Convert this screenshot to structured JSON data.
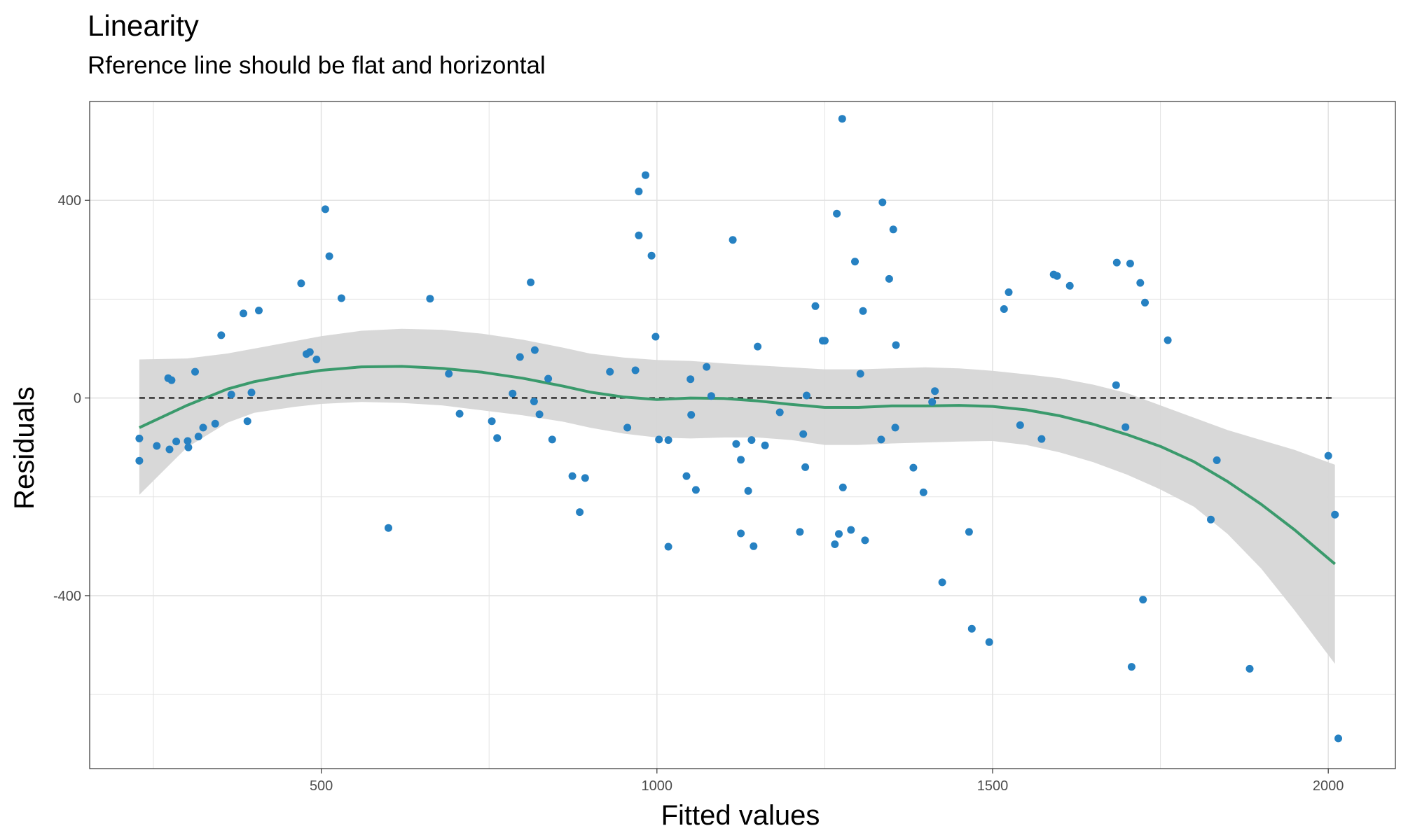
{
  "chart_data": {
    "type": "scatter",
    "title": "Linearity",
    "subtitle": "Rference line should be flat and horizontal",
    "xlabel": "Fitted values",
    "ylabel": "Residuals",
    "xlim": [
      155,
      2100
    ],
    "ylim": [
      -750,
      600
    ],
    "x_ticks": [
      500,
      1000,
      1500,
      2000
    ],
    "y_ticks": [
      -400,
      0,
      400
    ],
    "grid": true,
    "reference_line": {
      "y": 0,
      "style": "dashed",
      "x_range": [
        229,
        2010
      ]
    },
    "colors": {
      "points": "#2681c2",
      "smooth": "#3a9a6c",
      "band": "#d6d6d6",
      "reference": "#000000",
      "grid": "#e3e3e3",
      "panel_border": "#333333"
    },
    "points": [
      [
        229,
        -82
      ],
      [
        229,
        -127
      ],
      [
        255,
        -97
      ],
      [
        272,
        40
      ],
      [
        274,
        -104
      ],
      [
        277,
        36
      ],
      [
        284,
        -88
      ],
      [
        301,
        -87
      ],
      [
        302,
        -100
      ],
      [
        312,
        53
      ],
      [
        317,
        -78
      ],
      [
        324,
        -60
      ],
      [
        342,
        -52
      ],
      [
        351,
        127
      ],
      [
        366,
        7
      ],
      [
        384,
        171
      ],
      [
        390,
        -47
      ],
      [
        396,
        11
      ],
      [
        407,
        177
      ],
      [
        470,
        232
      ],
      [
        478,
        89
      ],
      [
        483,
        93
      ],
      [
        493,
        78
      ],
      [
        506,
        382
      ],
      [
        512,
        287
      ],
      [
        530,
        202
      ],
      [
        600,
        -263
      ],
      [
        662,
        201
      ],
      [
        690,
        49
      ],
      [
        706,
        -32
      ],
      [
        754,
        -47
      ],
      [
        762,
        -81
      ],
      [
        785,
        9
      ],
      [
        796,
        83
      ],
      [
        812,
        234
      ],
      [
        817,
        -7
      ],
      [
        818,
        97
      ],
      [
        825,
        -33
      ],
      [
        838,
        39
      ],
      [
        844,
        -84
      ],
      [
        874,
        -158
      ],
      [
        885,
        -231
      ],
      [
        893,
        -162
      ],
      [
        930,
        53
      ],
      [
        956,
        -60
      ],
      [
        968,
        56
      ],
      [
        973,
        418
      ],
      [
        973,
        329
      ],
      [
        983,
        451
      ],
      [
        992,
        288
      ],
      [
        998,
        124
      ],
      [
        1003,
        -84
      ],
      [
        1017,
        -85
      ],
      [
        1017,
        -301
      ],
      [
        1044,
        -158
      ],
      [
        1050,
        38
      ],
      [
        1051,
        -34
      ],
      [
        1058,
        -186
      ],
      [
        1074,
        63
      ],
      [
        1081,
        4
      ],
      [
        1113,
        320
      ],
      [
        1118,
        -93
      ],
      [
        1125,
        -125
      ],
      [
        1125,
        -274
      ],
      [
        1136,
        -188
      ],
      [
        1141,
        -85
      ],
      [
        1144,
        -300
      ],
      [
        1150,
        104
      ],
      [
        1161,
        -96
      ],
      [
        1183,
        -29
      ],
      [
        1213,
        -271
      ],
      [
        1218,
        -73
      ],
      [
        1221,
        -140
      ],
      [
        1223,
        5
      ],
      [
        1236,
        186
      ],
      [
        1247,
        116
      ],
      [
        1250,
        116
      ],
      [
        1265,
        -296
      ],
      [
        1268,
        373
      ],
      [
        1271,
        -275
      ],
      [
        1276,
        565
      ],
      [
        1277,
        -181
      ],
      [
        1289,
        -267
      ],
      [
        1295,
        276
      ],
      [
        1303,
        49
      ],
      [
        1307,
        176
      ],
      [
        1310,
        -288
      ],
      [
        1334,
        -84
      ],
      [
        1336,
        396
      ],
      [
        1346,
        241
      ],
      [
        1352,
        341
      ],
      [
        1355,
        -60
      ],
      [
        1356,
        107
      ],
      [
        1382,
        -141
      ],
      [
        1397,
        -191
      ],
      [
        1410,
        -8
      ],
      [
        1414,
        14
      ],
      [
        1425,
        -373
      ],
      [
        1465,
        -271
      ],
      [
        1469,
        -467
      ],
      [
        1495,
        -494
      ],
      [
        1517,
        180
      ],
      [
        1524,
        214
      ],
      [
        1541,
        -55
      ],
      [
        1573,
        -83
      ],
      [
        1591,
        250
      ],
      [
        1596,
        247
      ],
      [
        1615,
        227
      ],
      [
        1684,
        26
      ],
      [
        1685,
        274
      ],
      [
        1698,
        -59
      ],
      [
        1705,
        272
      ],
      [
        1707,
        -544
      ],
      [
        1720,
        233
      ],
      [
        1724,
        -408
      ],
      [
        1727,
        193
      ],
      [
        1761,
        117
      ],
      [
        1825,
        -246
      ],
      [
        1834,
        -126
      ],
      [
        1883,
        -548
      ],
      [
        2000,
        -117
      ],
      [
        2010,
        -236
      ],
      [
        2015,
        -689
      ]
    ],
    "smooth_line": [
      [
        229,
        -60
      ],
      [
        300,
        -15
      ],
      [
        360,
        18
      ],
      [
        400,
        33
      ],
      [
        460,
        48
      ],
      [
        500,
        56
      ],
      [
        560,
        63
      ],
      [
        620,
        64
      ],
      [
        680,
        60
      ],
      [
        740,
        52
      ],
      [
        800,
        40
      ],
      [
        860,
        24
      ],
      [
        900,
        12
      ],
      [
        950,
        2
      ],
      [
        1000,
        -3
      ],
      [
        1050,
        0
      ],
      [
        1100,
        -1
      ],
      [
        1150,
        -6
      ],
      [
        1200,
        -13
      ],
      [
        1250,
        -19
      ],
      [
        1300,
        -19
      ],
      [
        1350,
        -16
      ],
      [
        1400,
        -16
      ],
      [
        1450,
        -15
      ],
      [
        1500,
        -17
      ],
      [
        1550,
        -24
      ],
      [
        1600,
        -36
      ],
      [
        1650,
        -53
      ],
      [
        1700,
        -74
      ],
      [
        1750,
        -98
      ],
      [
        1800,
        -129
      ],
      [
        1850,
        -169
      ],
      [
        1900,
        -215
      ],
      [
        1950,
        -267
      ],
      [
        2010,
        -336
      ]
    ],
    "confidence_band": {
      "x": [
        229,
        300,
        360,
        400,
        460,
        500,
        560,
        620,
        680,
        740,
        800,
        860,
        900,
        950,
        1000,
        1050,
        1100,
        1150,
        1200,
        1250,
        1300,
        1350,
        1400,
        1450,
        1500,
        1550,
        1600,
        1650,
        1700,
        1750,
        1800,
        1850,
        1900,
        1950,
        2010
      ],
      "upper": [
        78,
        80,
        90,
        100,
        115,
        125,
        136,
        140,
        138,
        130,
        118,
        102,
        90,
        82,
        77,
        75,
        70,
        66,
        62,
        58,
        58,
        60,
        62,
        60,
        55,
        48,
        40,
        27,
        10,
        -15,
        -40,
        -65,
        -85,
        -105,
        -135
      ],
      "lower": [
        -196,
        -100,
        -50,
        -30,
        -18,
        -12,
        -8,
        -10,
        -15,
        -25,
        -35,
        -48,
        -60,
        -72,
        -80,
        -82,
        -80,
        -80,
        -85,
        -95,
        -95,
        -92,
        -90,
        -88,
        -87,
        -95,
        -110,
        -130,
        -155,
        -185,
        -220,
        -275,
        -345,
        -430,
        -538
      ]
    }
  }
}
